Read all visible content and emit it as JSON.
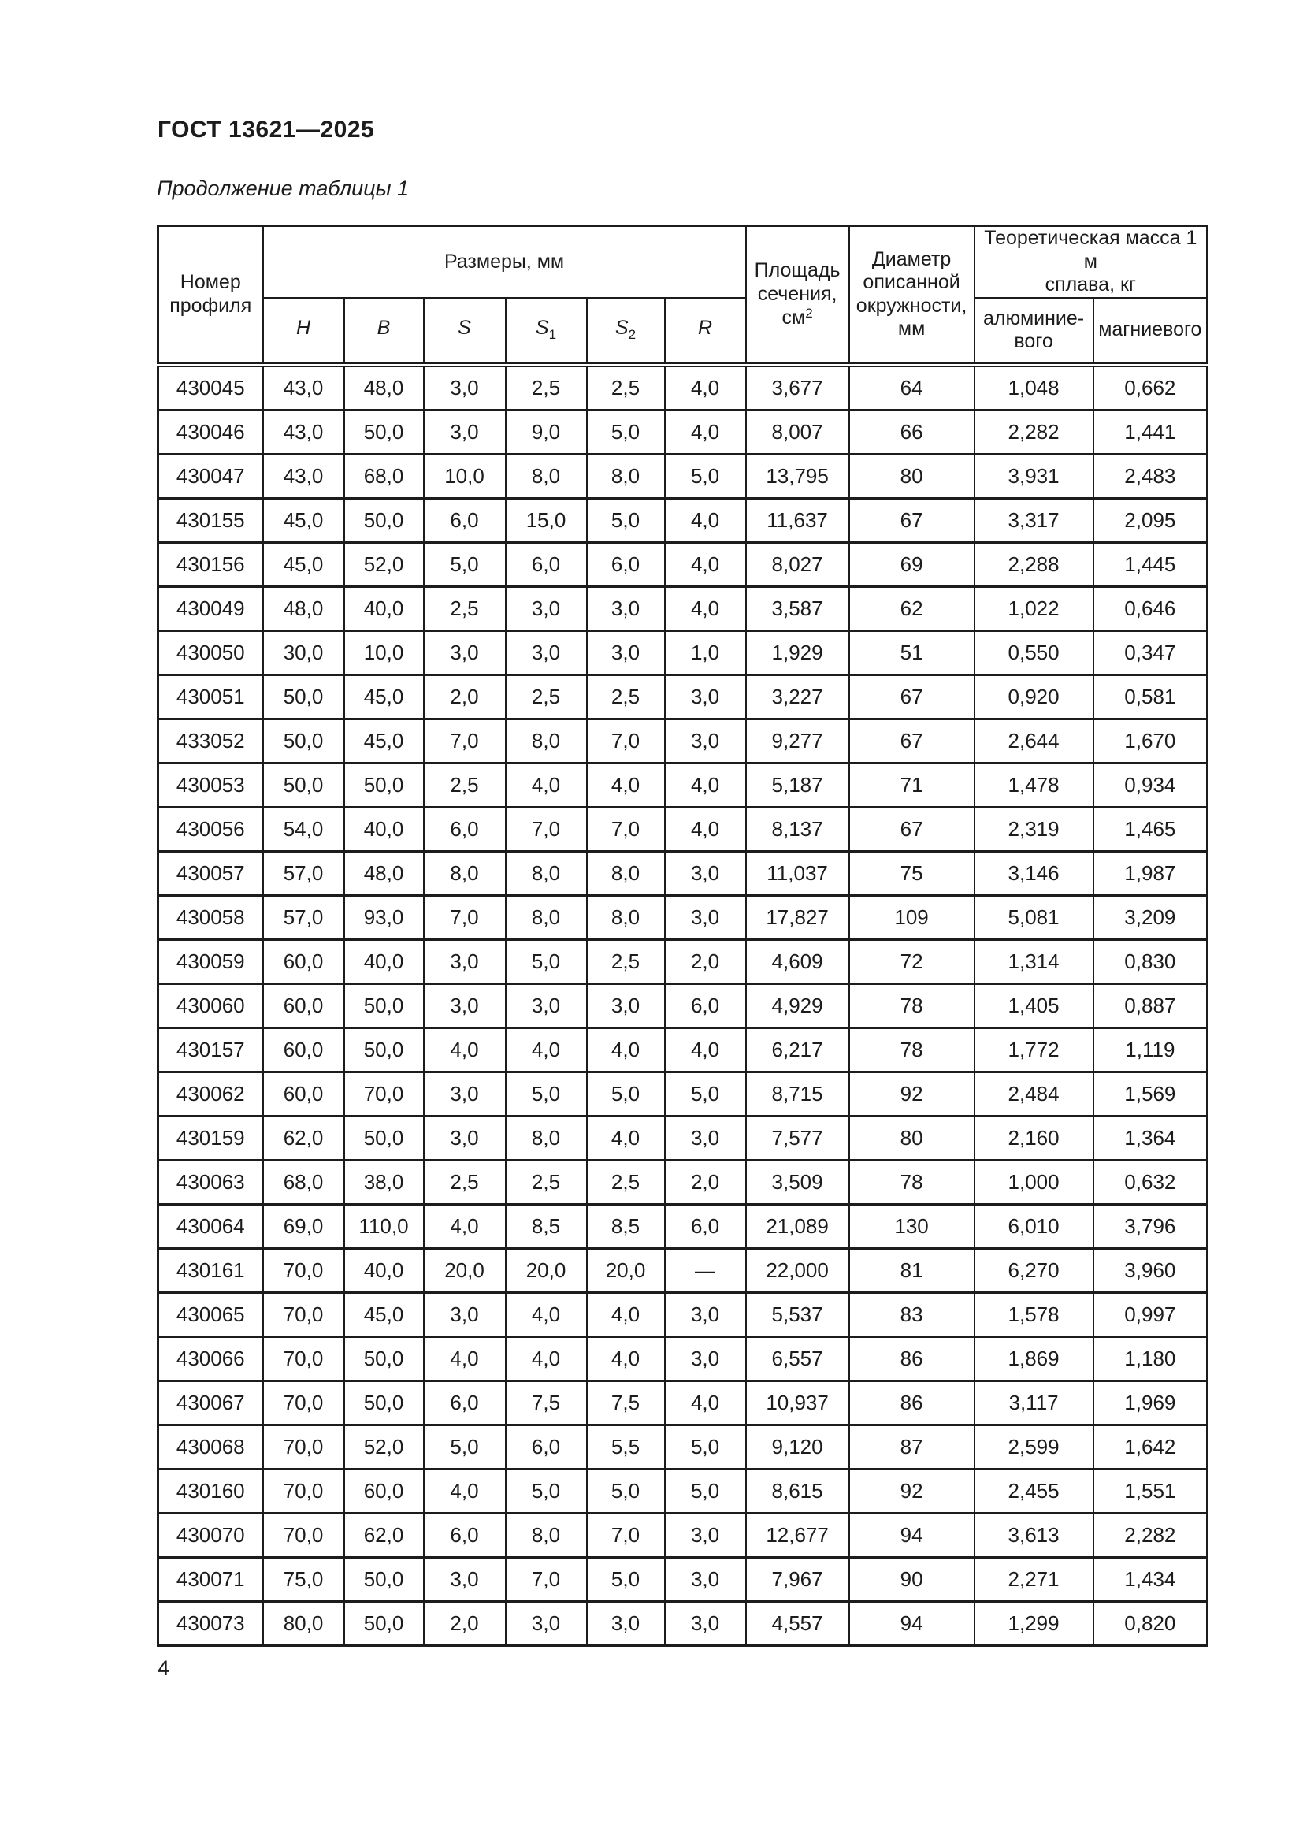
{
  "page": {
    "doc_code": "ГОСТ 13621—2025",
    "table_caption": "Продолжение таблицы 1",
    "page_number": "4"
  },
  "table": {
    "header": {
      "profile": "Номер\nпрофиля",
      "dimensions_group": "Размеры, мм",
      "dims": [
        {
          "base": "H",
          "sub": ""
        },
        {
          "base": "B",
          "sub": ""
        },
        {
          "base": "S",
          "sub": ""
        },
        {
          "base": "S",
          "sub": "1"
        },
        {
          "base": "S",
          "sub": "2"
        },
        {
          "base": "R",
          "sub": ""
        }
      ],
      "area_lines": "Площадь\nсечения,",
      "area_unit": "см",
      "area_unit_sup": "2",
      "diameter": "Диаметр\nописанной\nокружности,\nмм",
      "mass_group": "Теоретическая масса 1 м\nсплава, кг",
      "mass_cols": [
        "алюминие-\nвого",
        "магниевого"
      ]
    },
    "rows": [
      {
        "profile": "430045",
        "h": "43,0",
        "b": "48,0",
        "s": "3,0",
        "s1": "2,5",
        "s2": "2,5",
        "r": "4,0",
        "area": "3,677",
        "diameter": "64",
        "mass_al": "1,048",
        "mass_mg": "0,662"
      },
      {
        "profile": "430046",
        "h": "43,0",
        "b": "50,0",
        "s": "3,0",
        "s1": "9,0",
        "s2": "5,0",
        "r": "4,0",
        "area": "8,007",
        "diameter": "66",
        "mass_al": "2,282",
        "mass_mg": "1,441"
      },
      {
        "profile": "430047",
        "h": "43,0",
        "b": "68,0",
        "s": "10,0",
        "s1": "8,0",
        "s2": "8,0",
        "r": "5,0",
        "area": "13,795",
        "diameter": "80",
        "mass_al": "3,931",
        "mass_mg": "2,483"
      },
      {
        "profile": "430155",
        "h": "45,0",
        "b": "50,0",
        "s": "6,0",
        "s1": "15,0",
        "s2": "5,0",
        "r": "4,0",
        "area": "11,637",
        "diameter": "67",
        "mass_al": "3,317",
        "mass_mg": "2,095"
      },
      {
        "profile": "430156",
        "h": "45,0",
        "b": "52,0",
        "s": "5,0",
        "s1": "6,0",
        "s2": "6,0",
        "r": "4,0",
        "area": "8,027",
        "diameter": "69",
        "mass_al": "2,288",
        "mass_mg": "1,445"
      },
      {
        "profile": "430049",
        "h": "48,0",
        "b": "40,0",
        "s": "2,5",
        "s1": "3,0",
        "s2": "3,0",
        "r": "4,0",
        "area": "3,587",
        "diameter": "62",
        "mass_al": "1,022",
        "mass_mg": "0,646"
      },
      {
        "profile": "430050",
        "h": "30,0",
        "b": "10,0",
        "s": "3,0",
        "s1": "3,0",
        "s2": "3,0",
        "r": "1,0",
        "area": "1,929",
        "diameter": "51",
        "mass_al": "0,550",
        "mass_mg": "0,347"
      },
      {
        "profile": "430051",
        "h": "50,0",
        "b": "45,0",
        "s": "2,0",
        "s1": "2,5",
        "s2": "2,5",
        "r": "3,0",
        "area": "3,227",
        "diameter": "67",
        "mass_al": "0,920",
        "mass_mg": "0,581"
      },
      {
        "profile": "433052",
        "h": "50,0",
        "b": "45,0",
        "s": "7,0",
        "s1": "8,0",
        "s2": "7,0",
        "r": "3,0",
        "area": "9,277",
        "diameter": "67",
        "mass_al": "2,644",
        "mass_mg": "1,670"
      },
      {
        "profile": "430053",
        "h": "50,0",
        "b": "50,0",
        "s": "2,5",
        "s1": "4,0",
        "s2": "4,0",
        "r": "4,0",
        "area": "5,187",
        "diameter": "71",
        "mass_al": "1,478",
        "mass_mg": "0,934"
      },
      {
        "profile": "430056",
        "h": "54,0",
        "b": "40,0",
        "s": "6,0",
        "s1": "7,0",
        "s2": "7,0",
        "r": "4,0",
        "area": "8,137",
        "diameter": "67",
        "mass_al": "2,319",
        "mass_mg": "1,465"
      },
      {
        "profile": "430057",
        "h": "57,0",
        "b": "48,0",
        "s": "8,0",
        "s1": "8,0",
        "s2": "8,0",
        "r": "3,0",
        "area": "11,037",
        "diameter": "75",
        "mass_al": "3,146",
        "mass_mg": "1,987"
      },
      {
        "profile": "430058",
        "h": "57,0",
        "b": "93,0",
        "s": "7,0",
        "s1": "8,0",
        "s2": "8,0",
        "r": "3,0",
        "area": "17,827",
        "diameter": "109",
        "mass_al": "5,081",
        "mass_mg": "3,209"
      },
      {
        "profile": "430059",
        "h": "60,0",
        "b": "40,0",
        "s": "3,0",
        "s1": "5,0",
        "s2": "2,5",
        "r": "2,0",
        "area": "4,609",
        "diameter": "72",
        "mass_al": "1,314",
        "mass_mg": "0,830"
      },
      {
        "profile": "430060",
        "h": "60,0",
        "b": "50,0",
        "s": "3,0",
        "s1": "3,0",
        "s2": "3,0",
        "r": "6,0",
        "area": "4,929",
        "diameter": "78",
        "mass_al": "1,405",
        "mass_mg": "0,887"
      },
      {
        "profile": "430157",
        "h": "60,0",
        "b": "50,0",
        "s": "4,0",
        "s1": "4,0",
        "s2": "4,0",
        "r": "4,0",
        "area": "6,217",
        "diameter": "78",
        "mass_al": "1,772",
        "mass_mg": "1,119"
      },
      {
        "profile": "430062",
        "h": "60,0",
        "b": "70,0",
        "s": "3,0",
        "s1": "5,0",
        "s2": "5,0",
        "r": "5,0",
        "area": "8,715",
        "diameter": "92",
        "mass_al": "2,484",
        "mass_mg": "1,569"
      },
      {
        "profile": "430159",
        "h": "62,0",
        "b": "50,0",
        "s": "3,0",
        "s1": "8,0",
        "s2": "4,0",
        "r": "3,0",
        "area": "7,577",
        "diameter": "80",
        "mass_al": "2,160",
        "mass_mg": "1,364"
      },
      {
        "profile": "430063",
        "h": "68,0",
        "b": "38,0",
        "s": "2,5",
        "s1": "2,5",
        "s2": "2,5",
        "r": "2,0",
        "area": "3,509",
        "diameter": "78",
        "mass_al": "1,000",
        "mass_mg": "0,632"
      },
      {
        "profile": "430064",
        "h": "69,0",
        "b": "110,0",
        "s": "4,0",
        "s1": "8,5",
        "s2": "8,5",
        "r": "6,0",
        "area": "21,089",
        "diameter": "130",
        "mass_al": "6,010",
        "mass_mg": "3,796"
      },
      {
        "profile": "430161",
        "h": "70,0",
        "b": "40,0",
        "s": "20,0",
        "s1": "20,0",
        "s2": "20,0",
        "r": "—",
        "area": "22,000",
        "diameter": "81",
        "mass_al": "6,270",
        "mass_mg": "3,960"
      },
      {
        "profile": "430065",
        "h": "70,0",
        "b": "45,0",
        "s": "3,0",
        "s1": "4,0",
        "s2": "4,0",
        "r": "3,0",
        "area": "5,537",
        "diameter": "83",
        "mass_al": "1,578",
        "mass_mg": "0,997"
      },
      {
        "profile": "430066",
        "h": "70,0",
        "b": "50,0",
        "s": "4,0",
        "s1": "4,0",
        "s2": "4,0",
        "r": "3,0",
        "area": "6,557",
        "diameter": "86",
        "mass_al": "1,869",
        "mass_mg": "1,180"
      },
      {
        "profile": "430067",
        "h": "70,0",
        "b": "50,0",
        "s": "6,0",
        "s1": "7,5",
        "s2": "7,5",
        "r": "4,0",
        "area": "10,937",
        "diameter": "86",
        "mass_al": "3,117",
        "mass_mg": "1,969"
      },
      {
        "profile": "430068",
        "h": "70,0",
        "b": "52,0",
        "s": "5,0",
        "s1": "6,0",
        "s2": "5,5",
        "r": "5,0",
        "area": "9,120",
        "diameter": "87",
        "mass_al": "2,599",
        "mass_mg": "1,642"
      },
      {
        "profile": "430160",
        "h": "70,0",
        "b": "60,0",
        "s": "4,0",
        "s1": "5,0",
        "s2": "5,0",
        "r": "5,0",
        "area": "8,615",
        "diameter": "92",
        "mass_al": "2,455",
        "mass_mg": "1,551"
      },
      {
        "profile": "430070",
        "h": "70,0",
        "b": "62,0",
        "s": "6,0",
        "s1": "8,0",
        "s2": "7,0",
        "r": "3,0",
        "area": "12,677",
        "diameter": "94",
        "mass_al": "3,613",
        "mass_mg": "2,282"
      },
      {
        "profile": "430071",
        "h": "75,0",
        "b": "50,0",
        "s": "3,0",
        "s1": "7,0",
        "s2": "5,0",
        "r": "3,0",
        "area": "7,967",
        "diameter": "90",
        "mass_al": "2,271",
        "mass_mg": "1,434"
      },
      {
        "profile": "430073",
        "h": "80,0",
        "b": "50,0",
        "s": "2,0",
        "s1": "3,0",
        "s2": "3,0",
        "r": "3,0",
        "area": "4,557",
        "diameter": "94",
        "mass_al": "1,299",
        "mass_mg": "0,820"
      }
    ]
  }
}
